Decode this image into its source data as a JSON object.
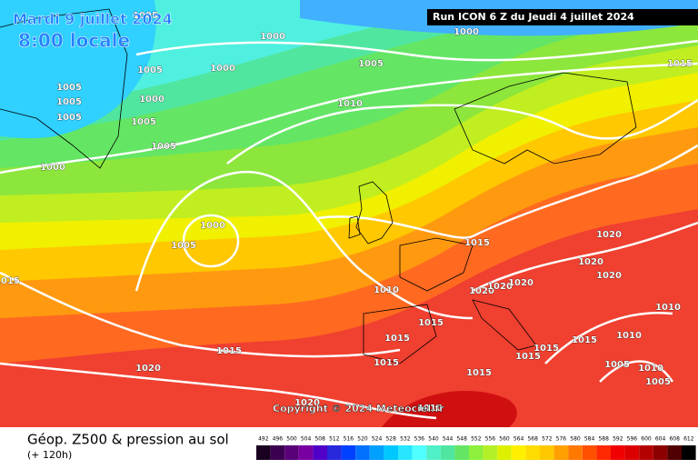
{
  "header": {
    "date": "Mardi 9 juillet 2024",
    "time": "8:00 locale"
  },
  "run": "Run ICON 6 Z du Jeudi 4 juillet 2024",
  "copyright": "Copyright © 2024 Meteociel.fr",
  "footer": {
    "title": "Géop. Z500 & pression au sol",
    "subtitle": "(+ 120h)"
  },
  "colorbar": {
    "labels": [
      492,
      496,
      500,
      504,
      508,
      512,
      516,
      520,
      524,
      528,
      532,
      536,
      540,
      544,
      548,
      552,
      556,
      560,
      564,
      568,
      572,
      576,
      580,
      584,
      588,
      592,
      596,
      600,
      604,
      608,
      612
    ],
    "colors": [
      "#1a0020",
      "#3c0050",
      "#5a0078",
      "#7800a0",
      "#5000c8",
      "#2828dc",
      "#0040ff",
      "#0070ff",
      "#00a0ff",
      "#00c8ff",
      "#28e6ff",
      "#50ffff",
      "#50f0c8",
      "#50e6a0",
      "#64e664",
      "#8cf03c",
      "#b4f028",
      "#dcf000",
      "#fff000",
      "#ffdc00",
      "#ffc800",
      "#ffa000",
      "#ff7800",
      "#ff5000",
      "#ff2800",
      "#f00000",
      "#dc0000",
      "#b40000",
      "#8c0000",
      "#500000",
      "#000000"
    ]
  },
  "isobar_labels": [
    "1005",
    "1000",
    "1000",
    "1005",
    "1015",
    "1005",
    "1000",
    "1005",
    "1000",
    "1005",
    "1005",
    "1010",
    "1005",
    "1005",
    "1000",
    "1000",
    "1005",
    "1015",
    "1020",
    "1020",
    "1020",
    "1015",
    "1010",
    "1020",
    "1020",
    "1020",
    "1010",
    "1015",
    "1015",
    "1015",
    "1010",
    "1015",
    "1015",
    "1015",
    "1005",
    "1010",
    "1015",
    "1020",
    "1015",
    "1005",
    "1010",
    "1020"
  ]
}
